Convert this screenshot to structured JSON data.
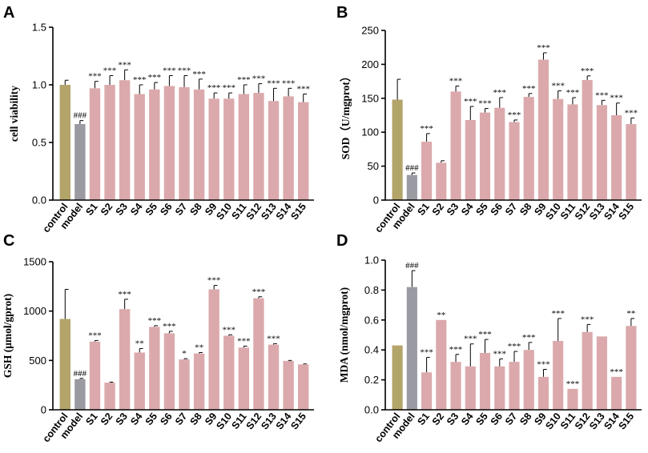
{
  "colors": {
    "control": "#b3a46a",
    "model": "#9a9aa2",
    "sample": "#dba9ac"
  },
  "chart_data": [
    {
      "panel": "A",
      "type": "bar",
      "categories": [
        "control",
        "model",
        "S1",
        "S2",
        "S3",
        "S4",
        "S5",
        "S6",
        "S7",
        "S8",
        "S9",
        "S10",
        "S11",
        "S12",
        "S13",
        "S14",
        "S15"
      ],
      "values": [
        1.0,
        0.66,
        0.97,
        1.0,
        1.04,
        0.92,
        0.96,
        0.99,
        0.98,
        0.96,
        0.88,
        0.88,
        0.92,
        0.93,
        0.86,
        0.9,
        0.85
      ],
      "errors": [
        0.04,
        0.03,
        0.06,
        0.08,
        0.09,
        0.08,
        0.06,
        0.09,
        0.1,
        0.09,
        0.05,
        0.05,
        0.08,
        0.08,
        0.11,
        0.07,
        0.07
      ],
      "annotations": [
        "",
        "###",
        "***",
        "***",
        "***",
        "***",
        "***",
        "***",
        "***",
        "***",
        "***",
        "***",
        "***",
        "***",
        "***",
        "***",
        "***"
      ],
      "ylabel": "cell viability",
      "ylim": [
        0,
        1.5
      ],
      "yticks": [
        0.0,
        0.5,
        1.0,
        1.5
      ],
      "ytick_labels": [
        "0.0",
        "0.5",
        "1.0",
        "1.5"
      ]
    },
    {
      "panel": "B",
      "type": "bar",
      "categories": [
        "control",
        "model",
        "S1",
        "S2",
        "S3",
        "S4",
        "S5",
        "S6",
        "S7",
        "S8",
        "S9",
        "S10",
        "S11",
        "S12",
        "S13",
        "S14",
        "S15"
      ],
      "values": [
        148,
        37,
        86,
        55,
        160,
        118,
        129,
        136,
        115,
        152,
        207,
        149,
        141,
        177,
        140,
        125,
        112
      ],
      "errors": [
        30,
        3,
        12,
        3,
        8,
        20,
        6,
        15,
        3,
        5,
        10,
        12,
        10,
        6,
        7,
        18,
        9
      ],
      "annotations": [
        "",
        "###",
        "***",
        "",
        "***",
        "***",
        "***",
        "***",
        "***",
        "***",
        "***",
        "***",
        "***",
        "***",
        "***",
        "***",
        "***"
      ],
      "ylabel": "SOD（U/mgprot）",
      "ylim": [
        0,
        250
      ],
      "yticks": [
        0,
        50,
        100,
        150,
        200,
        250
      ],
      "ytick_labels": [
        "0",
        "50",
        "100",
        "150",
        "200",
        "250"
      ]
    },
    {
      "panel": "C",
      "type": "bar",
      "categories": [
        "control",
        "model",
        "S1",
        "S2",
        "S3",
        "S4",
        "S5",
        "S6",
        "S7",
        "S8",
        "S9",
        "S10",
        "S11",
        "S12",
        "S13",
        "S14",
        "S15"
      ],
      "values": [
        920,
        310,
        690,
        275,
        1020,
        580,
        840,
        775,
        510,
        570,
        1220,
        750,
        630,
        1130,
        660,
        495,
        460
      ],
      "errors": [
        300,
        8,
        12,
        5,
        100,
        40,
        12,
        20,
        8,
        10,
        40,
        10,
        15,
        15,
        10,
        5,
        4
      ],
      "annotations": [
        "",
        "###",
        "***",
        "",
        "***",
        "**",
        "***",
        "***",
        "*",
        "**",
        "***",
        "***",
        "***",
        "***",
        "***",
        "",
        ""
      ],
      "ylabel": "GSH (μmol/gprot)",
      "ylim": [
        0,
        1500
      ],
      "yticks": [
        0,
        500,
        1000,
        1500
      ],
      "ytick_labels": [
        "0",
        "500",
        "1000",
        "1500"
      ]
    },
    {
      "panel": "D",
      "type": "bar",
      "categories": [
        "control",
        "model",
        "S1",
        "S2",
        "S3",
        "S4",
        "S5",
        "S6",
        "S7",
        "S8",
        "S9",
        "S10",
        "S11",
        "S12",
        "S13",
        "S14",
        "S15"
      ],
      "values": [
        0.43,
        0.82,
        0.25,
        0.6,
        0.32,
        0.29,
        0.38,
        0.29,
        0.32,
        0.4,
        0.22,
        0.46,
        0.14,
        0.52,
        0.49,
        0.22,
        0.56
      ],
      "errors": [
        0,
        0.11,
        0.1,
        0,
        0.05,
        0.15,
        0.09,
        0.05,
        0.07,
        0.05,
        0.05,
        0.15,
        0,
        0.05,
        0,
        0,
        0.05
      ],
      "annotations": [
        "",
        "###",
        "***",
        "**",
        "***",
        "***",
        "***",
        "***",
        "***",
        "***",
        "***",
        "***",
        "***",
        "***",
        "",
        "***",
        "**"
      ],
      "ylabel": "MDA (nmol/mgprot)",
      "ylim": [
        0,
        1.0
      ],
      "yticks": [
        0.0,
        0.2,
        0.4,
        0.6,
        0.8,
        1.0
      ],
      "ytick_labels": [
        "0.0",
        "0.2",
        "0.4",
        "0.6",
        "0.8",
        "1.0"
      ]
    }
  ]
}
